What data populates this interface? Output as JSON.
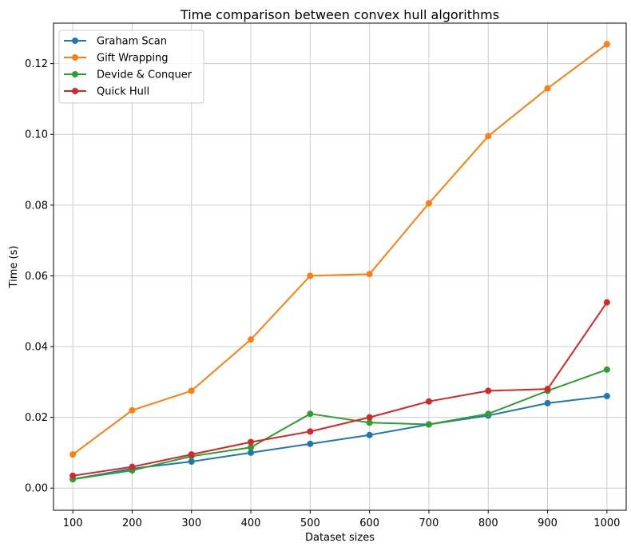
{
  "chart_data": {
    "type": "line",
    "title": "Time comparison between convex hull algorithms",
    "xlabel": "Dataset sizes",
    "ylabel": "Time (s)",
    "x": [
      100,
      200,
      300,
      400,
      500,
      600,
      700,
      800,
      900,
      1000
    ],
    "xlim": [
      67.5,
      1032.5
    ],
    "ylim": [
      -0.00627,
      0.13143
    ],
    "xticks": [
      "100",
      "200",
      "300",
      "400",
      "500",
      "600",
      "700",
      "800",
      "900",
      "1000"
    ],
    "yticks": [
      "0.00",
      "0.02",
      "0.04",
      "0.06",
      "0.08",
      "0.10",
      "0.12"
    ],
    "grid": true,
    "legend_position": "top-left",
    "series": [
      {
        "name": "Graham Scan",
        "color": "#1f77b4",
        "values": [
          0.0025,
          0.0055,
          0.0075,
          0.01,
          0.0125,
          0.015,
          0.018,
          0.0205,
          0.024,
          0.026
        ]
      },
      {
        "name": "Gift Wrapping",
        "color": "#ff7f0e",
        "values": [
          0.0095,
          0.022,
          0.0275,
          0.042,
          0.06,
          0.0605,
          0.0805,
          0.0995,
          0.113,
          0.1255
        ]
      },
      {
        "name": "Devide & Conquer",
        "color": "#2ca02c",
        "values": [
          0.0025,
          0.005,
          0.009,
          0.0115,
          0.021,
          0.0185,
          0.018,
          0.021,
          0.0275,
          0.0335
        ]
      },
      {
        "name": "Quick Hull",
        "color": "#d62728",
        "values": [
          0.0035,
          0.006,
          0.0095,
          0.013,
          0.016,
          0.02,
          0.0245,
          0.0275,
          0.028,
          0.0525
        ]
      }
    ]
  }
}
